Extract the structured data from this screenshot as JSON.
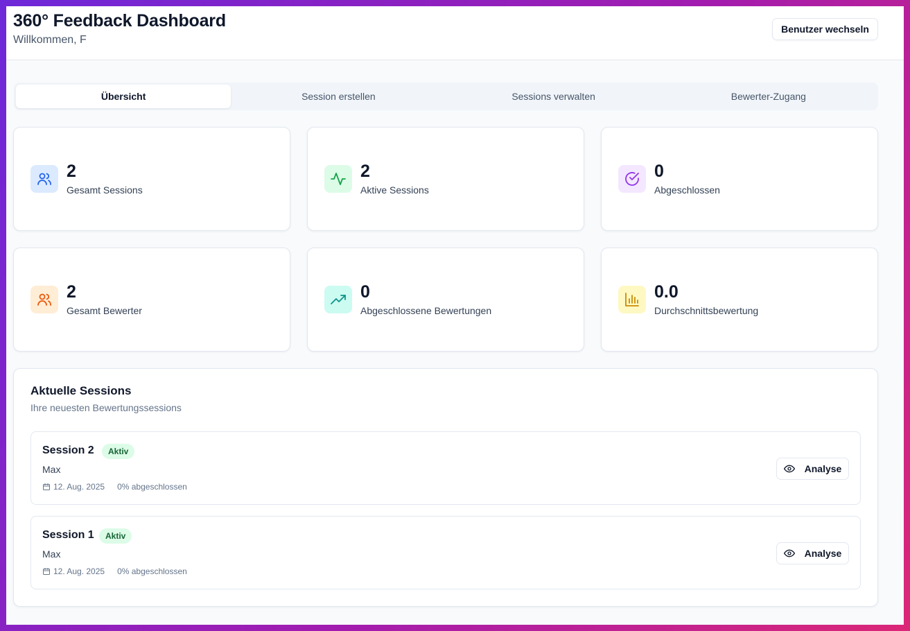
{
  "header": {
    "title": "360° Feedback Dashboard",
    "welcome": "Willkommen, F",
    "switch_user_label": "Benutzer wechseln"
  },
  "tabs": [
    {
      "label": "Übersicht",
      "active": true
    },
    {
      "label": "Session erstellen",
      "active": false
    },
    {
      "label": "Sessions verwalten",
      "active": false
    },
    {
      "label": "Bewerter-Zugang",
      "active": false
    }
  ],
  "stats": [
    {
      "value": "2",
      "label": "Gesamt Sessions",
      "icon": "users-icon",
      "color": "#2563eb",
      "bg": "#dbeafe"
    },
    {
      "value": "2",
      "label": "Aktive Sessions",
      "icon": "activity-icon",
      "color": "#16a34a",
      "bg": "#dcfce7"
    },
    {
      "value": "0",
      "label": "Abgeschlossen",
      "icon": "check-circle-icon",
      "color": "#9333ea",
      "bg": "#f3e8ff"
    },
    {
      "value": "2",
      "label": "Gesamt Bewerter",
      "icon": "users-icon",
      "color": "#ea580c",
      "bg": "#ffedd5"
    },
    {
      "value": "0",
      "label": "Abgeschlossene Bewertungen",
      "icon": "trending-up-icon",
      "color": "#0d9488",
      "bg": "#ccfbf1"
    },
    {
      "value": "0.0",
      "label": "Durchschnittsbewertung",
      "icon": "bar-chart-icon",
      "color": "#ca8a04",
      "bg": "#fef9c3"
    }
  ],
  "recent": {
    "title": "Aktuelle Sessions",
    "subtitle": "Ihre neuesten Bewertungssessions",
    "items": [
      {
        "name": "Session 2",
        "status": "Aktiv",
        "person": "Max",
        "date": "12. Aug. 2025",
        "progress": "0% abgeschlossen",
        "action": "Analyse"
      },
      {
        "name": "Session 1",
        "status": "Aktiv",
        "person": "Max",
        "date": "12. Aug. 2025",
        "progress": "0% abgeschlossen",
        "action": "Analyse"
      }
    ]
  }
}
